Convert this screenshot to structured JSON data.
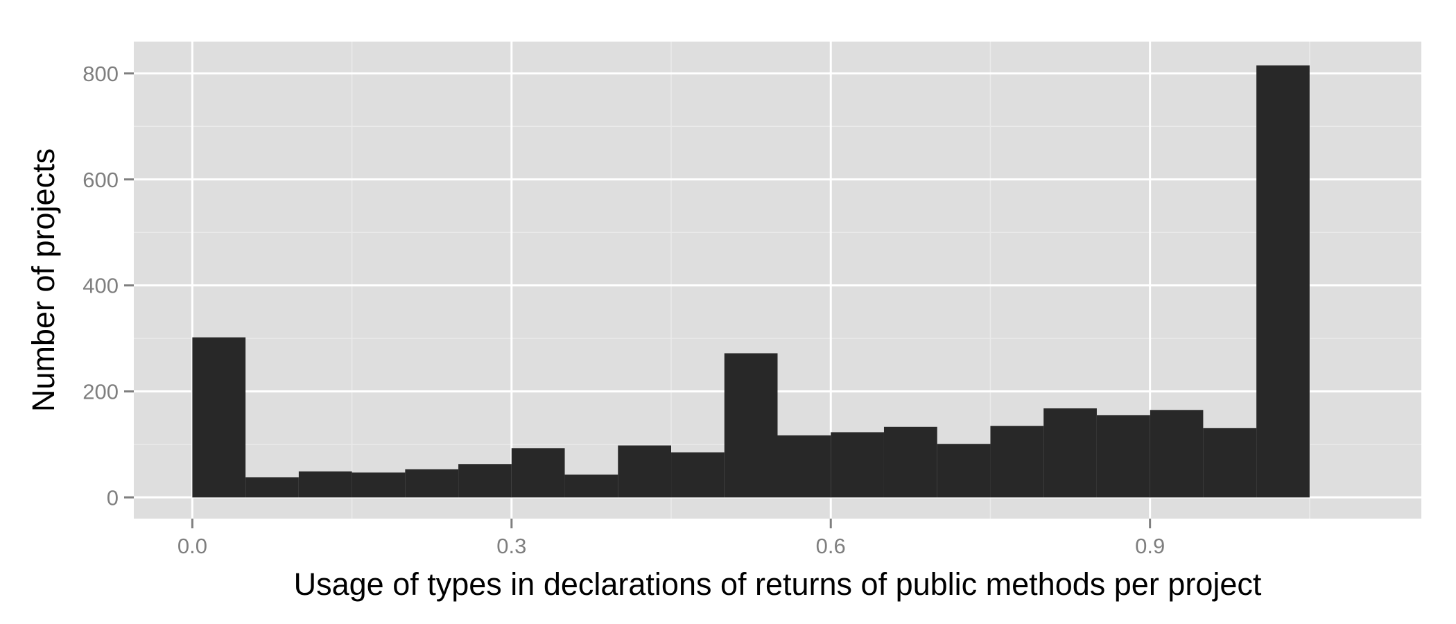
{
  "chart_data": {
    "type": "bar",
    "title": "",
    "xlabel": "Usage of types in declarations of returns of public methods per project",
    "ylabel": "Number of projects",
    "bin_width": 0.05,
    "x": [
      0.025,
      0.075,
      0.125,
      0.175,
      0.225,
      0.275,
      0.325,
      0.375,
      0.425,
      0.475,
      0.525,
      0.575,
      0.625,
      0.675,
      0.725,
      0.775,
      0.825,
      0.875,
      0.925,
      0.975,
      1.025
    ],
    "values": [
      302,
      38,
      49,
      47,
      53,
      63,
      93,
      43,
      98,
      85,
      272,
      117,
      123,
      133,
      101,
      135,
      168,
      155,
      165,
      131,
      815
    ],
    "xlim": [
      -0.055,
      1.155
    ],
    "ylim": [
      -40,
      860
    ],
    "xticks": [
      0.0,
      0.3,
      0.6,
      0.9
    ],
    "xtick_labels": [
      "0.0",
      "0.3",
      "0.6",
      "0.9"
    ],
    "yticks": [
      0,
      200,
      400,
      600,
      800
    ],
    "ytick_labels": [
      "0",
      "200",
      "400",
      "600",
      "800"
    ],
    "grid": true,
    "colors": {
      "panel": "#dedede",
      "grid_major": "#ffffff",
      "grid_minor": "#eaeaea",
      "bar": "#282828",
      "tick_label": "#7f7f7f",
      "axis_title": "#000000"
    }
  }
}
